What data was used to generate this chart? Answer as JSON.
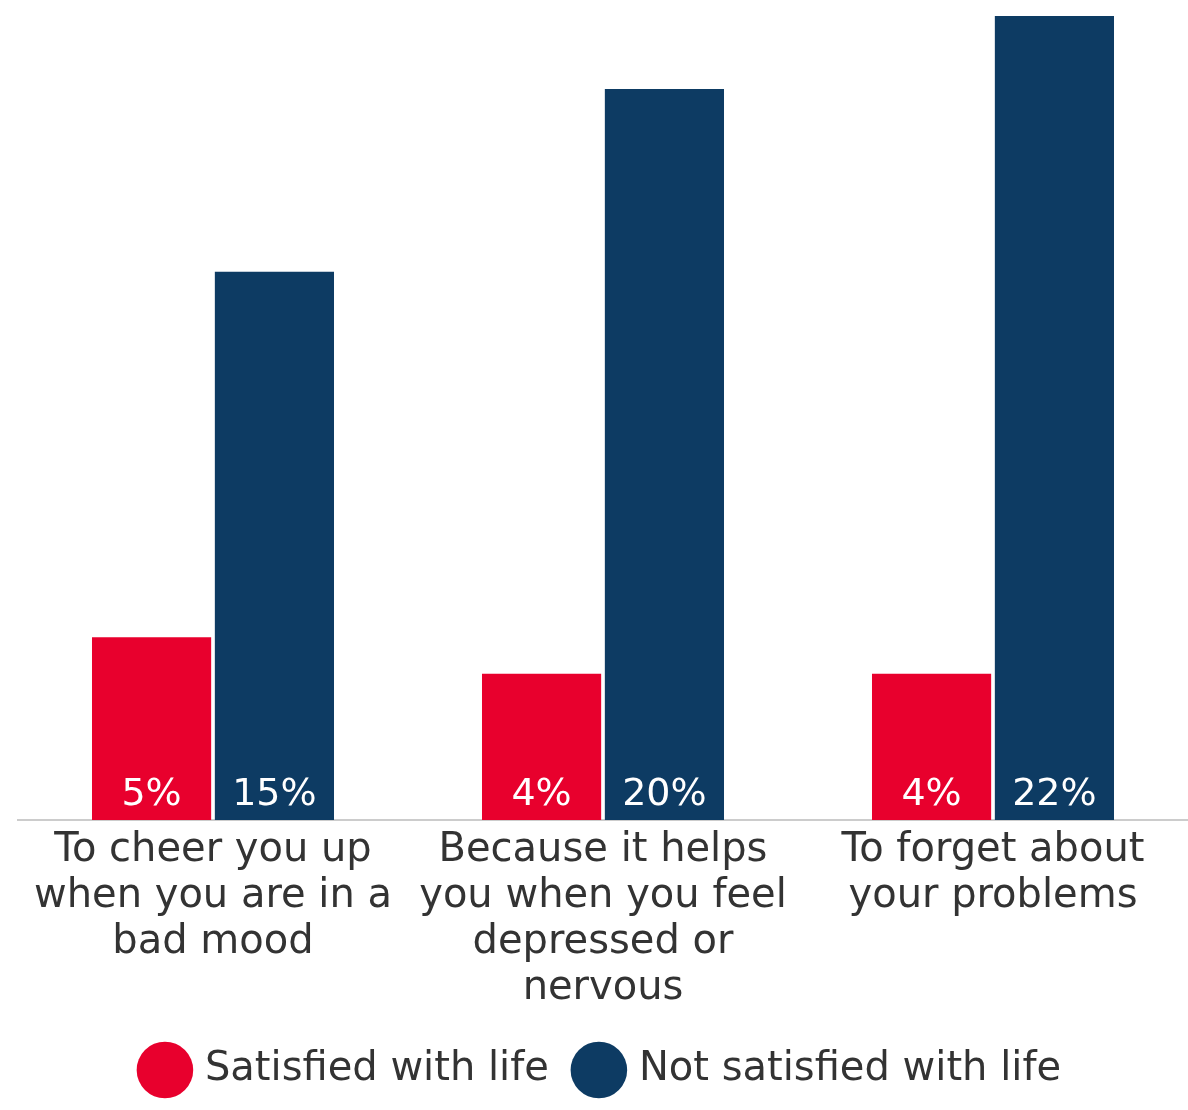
{
  "chart_data": {
    "type": "bar",
    "categories": [
      "To cheer you up when you are in a bad mood",
      "Because it helps you when you feel depressed or nervous",
      "To forget about your problems"
    ],
    "series": [
      {
        "name": "Satisfied with life",
        "color": "#e8002d",
        "values": [
          5,
          4,
          4
        ],
        "value_labels": [
          "5%",
          "4%",
          "4%"
        ]
      },
      {
        "name": "Not satisfied with life",
        "color": "#0d3b63",
        "values": [
          15,
          20,
          22
        ],
        "value_labels": [
          "15%",
          "20%",
          "22%"
        ]
      }
    ],
    "grid": false,
    "legend": "bottom"
  }
}
